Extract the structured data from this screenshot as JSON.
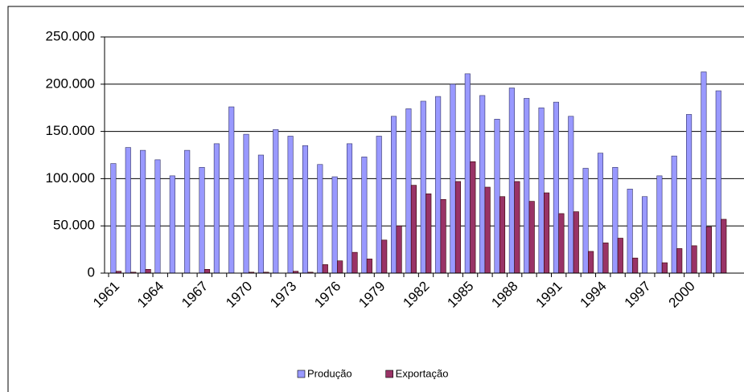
{
  "chart_data": {
    "type": "bar",
    "categories": [
      "1961",
      null,
      null,
      "1964",
      null,
      null,
      "1967",
      null,
      null,
      "1970",
      null,
      null,
      "1973",
      null,
      null,
      "1976",
      null,
      null,
      "1979",
      null,
      null,
      "1982",
      null,
      null,
      "1985",
      null,
      null,
      "1988",
      null,
      null,
      "1991",
      null,
      null,
      "1994",
      null,
      null,
      "1997",
      null,
      null,
      "2000",
      null,
      null
    ],
    "series": [
      {
        "name": "Produção",
        "color": "#9999ff",
        "values": [
          116000,
          133000,
          130000,
          120000,
          103000,
          130000,
          112000,
          137000,
          176000,
          147000,
          125000,
          152000,
          145000,
          135000,
          115000,
          102000,
          137000,
          123000,
          145000,
          166000,
          174000,
          182000,
          187000,
          200000,
          211000,
          188000,
          163000,
          196000,
          185000,
          175000,
          181000,
          166000,
          111000,
          127000,
          112000,
          89000,
          81000,
          103000,
          124000,
          168000,
          213000,
          193000
        ]
      },
      {
        "name": "Exportação",
        "color": "#993366",
        "values": [
          2000,
          1000,
          4000,
          0,
          0,
          0,
          4000,
          0,
          0,
          1000,
          1000,
          0,
          2000,
          1000,
          9000,
          13000,
          22000,
          15000,
          35000,
          50000,
          93000,
          84000,
          78000,
          97000,
          118000,
          91000,
          81000,
          97000,
          76000,
          85000,
          63000,
          65000,
          23000,
          32000,
          37000,
          16000,
          0,
          11000,
          26000,
          29000,
          49000,
          57000
        ]
      }
    ],
    "ylim": [
      0,
      250000
    ],
    "yticks": [
      0,
      {
        "value": 50000,
        "label": "50.000"
      },
      {
        "value": 100000,
        "label": "100.000"
      },
      {
        "value": 150000,
        "label": "150.000"
      },
      {
        "value": 200000,
        "label": "200.000"
      },
      {
        "value": 250000,
        "label": "250.000"
      }
    ],
    "grid": true,
    "legend": "bottom"
  }
}
